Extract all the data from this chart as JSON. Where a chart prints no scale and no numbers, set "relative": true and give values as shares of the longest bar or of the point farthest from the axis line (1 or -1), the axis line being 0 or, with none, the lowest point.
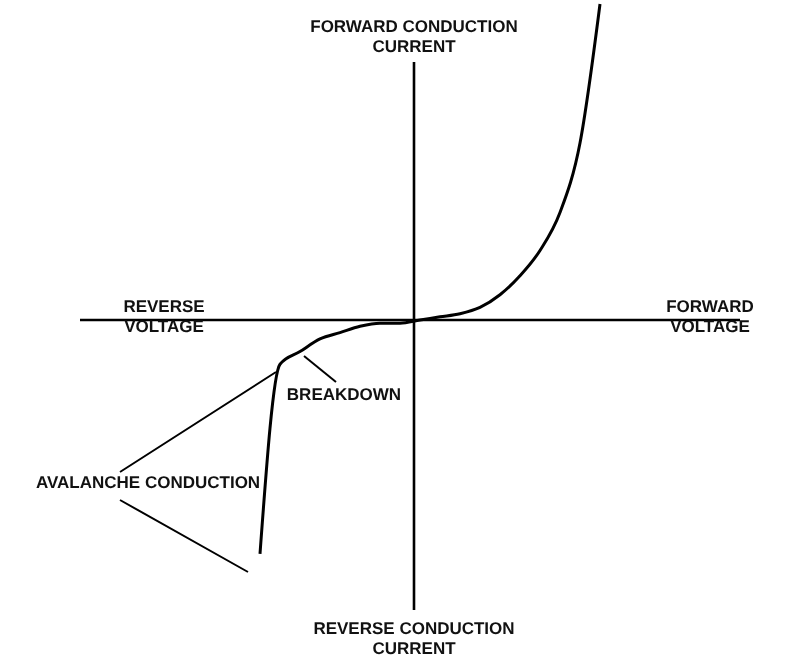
{
  "chart_data": {
    "type": "line",
    "relative": true,
    "ylabel": "FORWARD CONDUCTION CURRENT",
    "xlabel": "FORWARD VOLTAGE",
    "tick_labels": false,
    "marker": "none",
    "line_style": "solid",
    "annotations": [
      "REVERSE VOLTAGE",
      "REVERSE CONDUCTION CURRENT",
      "BREAKDOWN",
      "AVALANCHE CONDUCTION"
    ],
    "categories": [
      null,
      null,
      null,
      null,
      null,
      null,
      null,
      null,
      null,
      null,
      null,
      null,
      null,
      null,
      null,
      null,
      null,
      null,
      null,
      null,
      null,
      null,
      null,
      null,
      null,
      null,
      null,
      null,
      null,
      null,
      null,
      null,
      null,
      null
    ],
    "series": [
      {
        "color": "#000000",
        "values": [
          null,
          null,
          null,
          null,
          null,
          null,
          null,
          null,
          null,
          -0.74,
          -0.14,
          -0.1,
          -0.06,
          -0.04,
          -0.02,
          -0.01,
          -0.01,
          0,
          0.01,
          0.02,
          0.04,
          0.08,
          0.14,
          0.22,
          0.34,
          0.56,
          1,
          null,
          null,
          null,
          null,
          null,
          null,
          null
        ]
      }
    ]
  }
}
